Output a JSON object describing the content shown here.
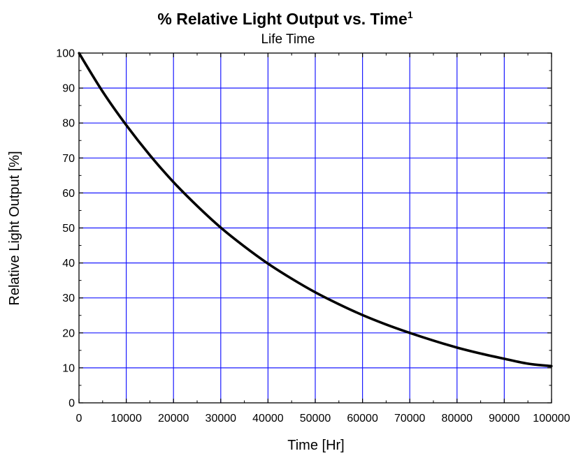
{
  "chart_data": {
    "type": "line",
    "title": "% Relative Light Output vs. Time",
    "title_superscript": "1",
    "subtitle": "Life Time",
    "xlabel": "Time [Hr]",
    "ylabel": "Relative Light Output [%]",
    "xlim": [
      0,
      100000
    ],
    "ylim": [
      0,
      100
    ],
    "x_ticks": [
      0,
      10000,
      20000,
      30000,
      40000,
      50000,
      60000,
      70000,
      80000,
      90000,
      100000
    ],
    "y_ticks": [
      0,
      10,
      20,
      30,
      40,
      50,
      60,
      70,
      80,
      90,
      100
    ],
    "x_tick_labels": [
      "0",
      "10000",
      "20000",
      "30000",
      "40000",
      "50000",
      "60000",
      "70000",
      "80000",
      "90000",
      "100000"
    ],
    "y_tick_labels": [
      "0",
      "10",
      "20",
      "30",
      "40",
      "50",
      "60",
      "70",
      "80",
      "90",
      "100"
    ],
    "grid": true,
    "grid_color": "#1a1aff",
    "line_color": "#000000",
    "series": [
      {
        "x": [
          0,
          5000,
          10000,
          15000,
          20000,
          25000,
          30000,
          35000,
          40000,
          45000,
          50000,
          55000,
          60000,
          65000,
          70000,
          75000,
          80000,
          85000,
          90000,
          95000,
          100000
        ],
        "values": [
          100,
          89,
          79.4,
          70.8,
          63.1,
          56.3,
          50.1,
          44.7,
          39.8,
          35.5,
          31.6,
          28.2,
          25.1,
          22.4,
          20,
          17.8,
          15.8,
          14.1,
          12.6,
          11.2,
          10.5
        ]
      }
    ]
  }
}
